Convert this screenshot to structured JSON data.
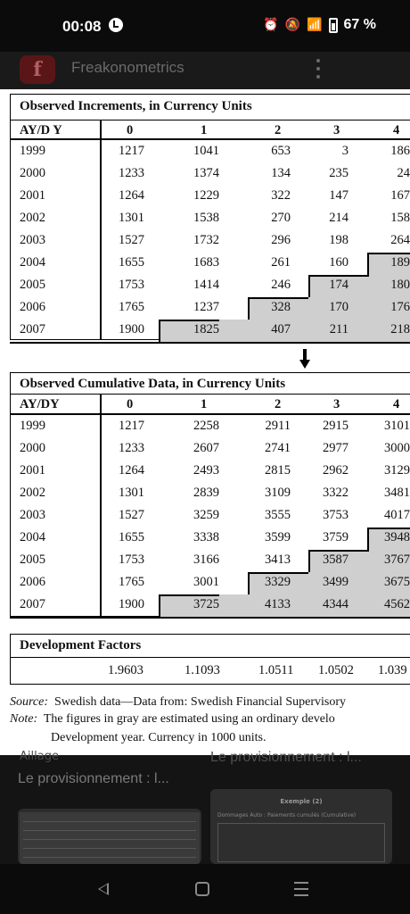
{
  "status_bar": {
    "time": "00:08",
    "battery": "67 %"
  },
  "app": {
    "title": "Freakonometrics",
    "logo_letter": "f"
  },
  "doc": {
    "increments_title": "Observed Increments, in Currency Units",
    "increments_corner": "AY/D Y",
    "cumulative_title": "Observed Cumulative Data, in Currency Units",
    "cumulative_corner": "AY/DY",
    "dev_cols": [
      "0",
      "1",
      "2",
      "3",
      "4"
    ],
    "years": [
      "1999",
      "2000",
      "2001",
      "2002",
      "2003",
      "2004",
      "2005",
      "2006",
      "2007"
    ],
    "increments": [
      [
        "1217",
        "1041",
        "653",
        "3",
        "186"
      ],
      [
        "1233",
        "1374",
        "134",
        "235",
        "24"
      ],
      [
        "1264",
        "1229",
        "322",
        "147",
        "167"
      ],
      [
        "1301",
        "1538",
        "270",
        "214",
        "158"
      ],
      [
        "1527",
        "1732",
        "296",
        "198",
        "264"
      ],
      [
        "1655",
        "1683",
        "261",
        "160",
        "189"
      ],
      [
        "1753",
        "1414",
        "246",
        "174",
        "180"
      ],
      [
        "1765",
        "1237",
        "328",
        "170",
        "176"
      ],
      [
        "1900",
        "1825",
        "407",
        "211",
        "218"
      ]
    ],
    "cumulative": [
      [
        "1217",
        "2258",
        "2911",
        "2915",
        "3101"
      ],
      [
        "1233",
        "2607",
        "2741",
        "2977",
        "3000"
      ],
      [
        "1264",
        "2493",
        "2815",
        "2962",
        "3129"
      ],
      [
        "1301",
        "2839",
        "3109",
        "3322",
        "3481"
      ],
      [
        "1527",
        "3259",
        "3555",
        "3753",
        "4017"
      ],
      [
        "1655",
        "3338",
        "3599",
        "3759",
        "3948"
      ],
      [
        "1753",
        "3166",
        "3413",
        "3587",
        "3767"
      ],
      [
        "1765",
        "3001",
        "3329",
        "3499",
        "3675"
      ],
      [
        "1900",
        "3725",
        "4133",
        "4344",
        "4562"
      ]
    ],
    "dev_factors_title": "Development Factors",
    "dev_factors": [
      "1.9603",
      "1.1093",
      "1.0511",
      "1.0502",
      "1.039"
    ],
    "source_label": "Source:",
    "source_text": "Swedish data—Data from: Swedish Financial Supervisory",
    "note_label": "Note:",
    "note_text": "The figures in gray are estimated using an ordinary develo",
    "note_text2": "Development year. Currency in 1000 units."
  },
  "below": {
    "tag": "Aillage",
    "card1_title": "Le provisionnement : l...",
    "card2_title": "Le provisionnement : l...",
    "thumb2_heading": "Exemple (2)",
    "thumb2_sub": "Dommages Auto : Paiements cumulés (Cumulative)"
  },
  "colors": {
    "gray_cell": "#cfcfcf",
    "background": "#121212"
  }
}
